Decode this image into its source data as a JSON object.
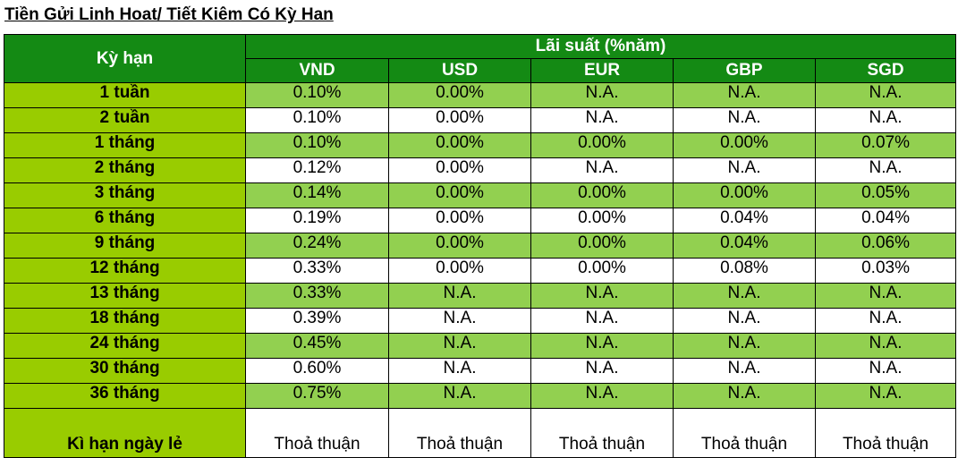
{
  "title": "Tiền Gửi Linh Hoat/ Tiết Kiêm Có Kỳ Han",
  "table": {
    "term_header": "Kỳ hạn",
    "rate_header": "Lãi suất (%năm)",
    "currencies": [
      "VND",
      "USD",
      "EUR",
      "GBP",
      "SGD"
    ],
    "rows": [
      [
        "1 tuần",
        "0.10%",
        "0.00%",
        "N.A.",
        "N.A.",
        "N.A."
      ],
      [
        "2 tuần",
        "0.10%",
        "0.00%",
        "N.A.",
        "N.A.",
        "N.A."
      ],
      [
        "1 tháng",
        "0.10%",
        "0.00%",
        "0.00%",
        "0.00%",
        "0.07%"
      ],
      [
        "2 tháng",
        "0.12%",
        "0.00%",
        "N.A.",
        "N.A.",
        "N.A."
      ],
      [
        "3 tháng",
        "0.14%",
        "0.00%",
        "0.00%",
        "0.00%",
        "0.05%"
      ],
      [
        "6 tháng",
        "0.19%",
        "0.00%",
        "0.00%",
        "0.04%",
        "0.04%"
      ],
      [
        "9 tháng",
        "0.24%",
        "0.00%",
        "0.00%",
        "0.04%",
        "0.06%"
      ],
      [
        "12 tháng",
        "0.33%",
        "0.00%",
        "0.00%",
        "0.08%",
        "0.03%"
      ],
      [
        "13 tháng",
        "0.33%",
        "N.A.",
        "N.A.",
        "N.A.",
        "N.A."
      ],
      [
        "18 tháng",
        "0.39%",
        "N.A.",
        "N.A.",
        "N.A.",
        "N.A."
      ],
      [
        "24 tháng",
        "0.45%",
        "N.A.",
        "N.A.",
        "N.A.",
        "N.A."
      ],
      [
        "30 tháng",
        "0.60%",
        "N.A.",
        "N.A.",
        "N.A.",
        "N.A."
      ],
      [
        "36 tháng",
        "0.75%",
        "N.A.",
        "N.A.",
        "N.A.",
        "N.A."
      ],
      [
        "Kì hạn ngày lẻ",
        "Thoả thuận",
        "Thoả thuận",
        "Thoả thuận",
        "Thoả thuận",
        "Thoả thuận"
      ]
    ]
  }
}
